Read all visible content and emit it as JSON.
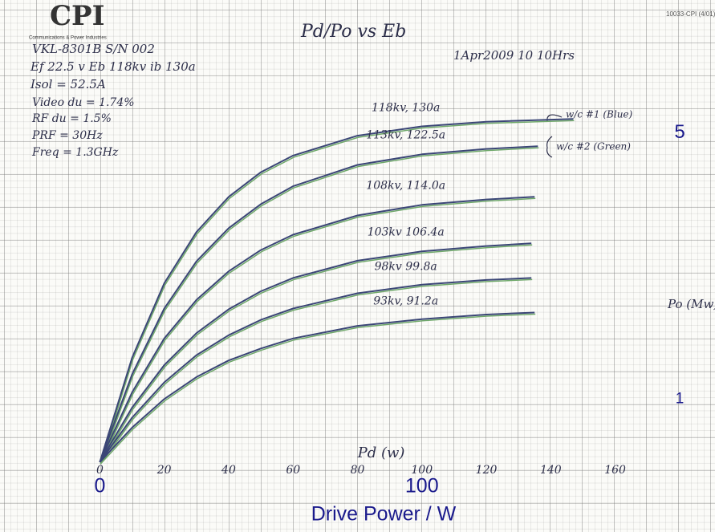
{
  "chart_data": {
    "type": "line",
    "logo": "CPI",
    "logo_subtitle": "Communications & Power Industries",
    "form_number": "10033-CPI (4/01)",
    "title": "Pd/Po vs Eb",
    "notes": [
      "VKL-8301B S/N 002",
      "Ef 22.5 v Eb 118kv ib 130a",
      "Isol = 52.5A",
      "Video du = 1.74%",
      "RF du = 1.5%",
      "PRF = 30Hz",
      "Freq = 1.3GHz"
    ],
    "date": "1Apr2009 10 10Hrs",
    "annotations": [
      "w/c #1 (Blue)",
      "w/c #2 (Green)"
    ],
    "x_label": "Pd (w)",
    "x_label_printed": "Drive  Power / W",
    "y_label": "Po (Mw)",
    "xlim": [
      -31,
      191
    ],
    "ylim": [
      -1,
      7
    ],
    "xticks": [
      0,
      20,
      40,
      60,
      80,
      100,
      120,
      140,
      160
    ],
    "xticks_printed": [
      0,
      100
    ],
    "yticks_printed": [
      1,
      5
    ],
    "series": [
      {
        "name": "118kv, 130a",
        "color": "#3b4676",
        "x": [
          0,
          10,
          20,
          30,
          40,
          50,
          60,
          80,
          100,
          120,
          147
        ],
        "values": [
          0.05,
          1.62,
          2.74,
          3.51,
          4.04,
          4.41,
          4.66,
          4.96,
          5.1,
          5.17,
          5.21
        ]
      },
      {
        "name": "113kv, 122.5a",
        "color": "#3b4676",
        "x": [
          0,
          10,
          20,
          30,
          40,
          50,
          60,
          80,
          100,
          120,
          136
        ],
        "values": [
          0.05,
          1.37,
          2.36,
          3.07,
          3.57,
          3.93,
          4.2,
          4.52,
          4.68,
          4.76,
          4.8
        ]
      },
      {
        "name": "108kv, 114.0a",
        "color": "#3b4676",
        "x": [
          0,
          10,
          20,
          30,
          40,
          50,
          60,
          80,
          100,
          120,
          135
        ],
        "values": [
          0.05,
          1.1,
          1.91,
          2.49,
          2.92,
          3.24,
          3.47,
          3.76,
          3.92,
          4.0,
          4.04
        ]
      },
      {
        "name": "103kv 106.4a",
        "color": "#3b4676",
        "x": [
          0,
          10,
          20,
          30,
          40,
          50,
          60,
          80,
          100,
          120,
          134
        ],
        "values": [
          0.05,
          0.87,
          1.51,
          1.99,
          2.35,
          2.62,
          2.82,
          3.08,
          3.22,
          3.3,
          3.34
        ]
      },
      {
        "name": "98kv 99.8a",
        "color": "#3b4676",
        "x": [
          0,
          10,
          20,
          30,
          40,
          50,
          60,
          80,
          100,
          120,
          134
        ],
        "values": [
          0.05,
          0.72,
          1.25,
          1.66,
          1.96,
          2.19,
          2.36,
          2.59,
          2.72,
          2.79,
          2.82
        ]
      },
      {
        "name": "93kv, 91.2a",
        "color": "#3b4676",
        "x": [
          0,
          10,
          20,
          30,
          40,
          50,
          60,
          80,
          100,
          120,
          135
        ],
        "values": [
          0.05,
          0.57,
          1.0,
          1.33,
          1.58,
          1.76,
          1.91,
          2.1,
          2.2,
          2.27,
          2.3
        ]
      }
    ]
  }
}
